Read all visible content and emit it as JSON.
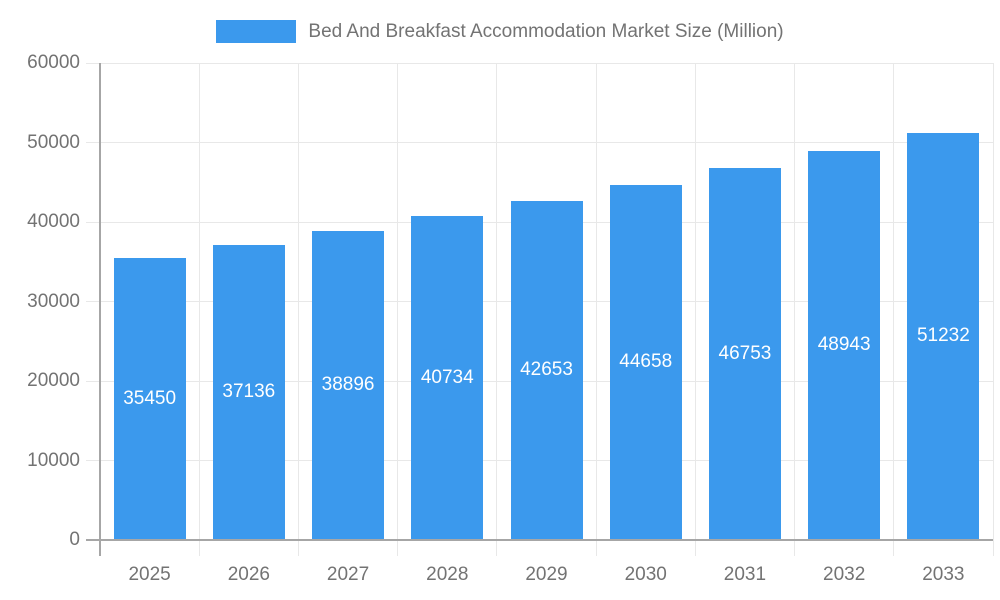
{
  "chart_data": {
    "type": "bar",
    "title": "Bed And Breakfast Accommodation Market Size (Million)",
    "categories": [
      "2025",
      "2026",
      "2027",
      "2028",
      "2029",
      "2030",
      "2031",
      "2032",
      "2033"
    ],
    "values": [
      35450,
      37136,
      38896,
      40734,
      42653,
      44658,
      46753,
      48943,
      51232
    ],
    "xlabel": "",
    "ylabel": "",
    "ylim": [
      0,
      60000
    ],
    "ytick_labels": [
      "0",
      "10000",
      "20000",
      "30000",
      "40000",
      "50000",
      "60000"
    ],
    "ytick_values": [
      0,
      10000,
      20000,
      30000,
      40000,
      50000,
      60000
    ],
    "grid": true,
    "legend_position": "top",
    "data_labels": "inside-center",
    "colors": {
      "bar": "#3B99ED",
      "bar_label_text": "#ffffff",
      "axis_text": "#737373",
      "gridline": "#E8E8E8",
      "axis_line": "#A6A6A6",
      "background": "#ffffff"
    }
  }
}
